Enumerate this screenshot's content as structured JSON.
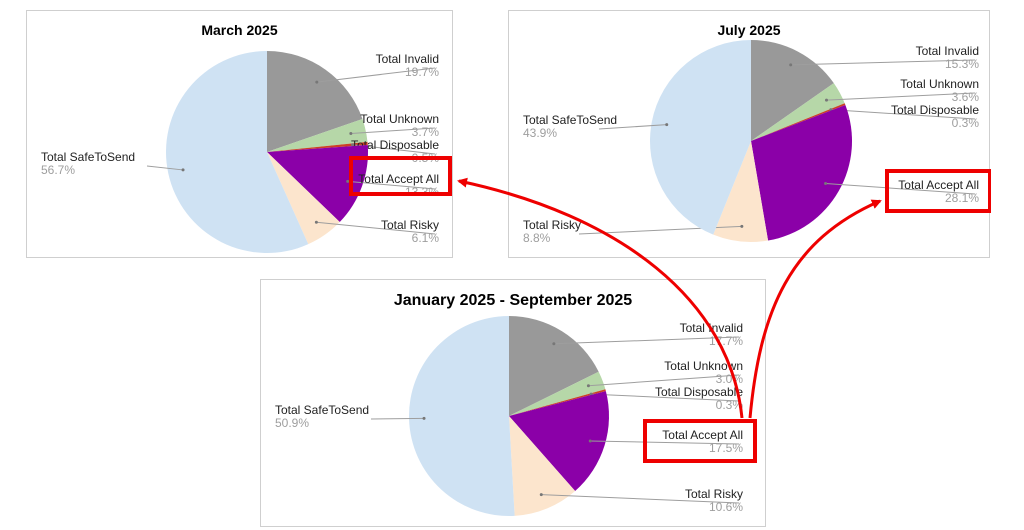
{
  "chart_data": [
    {
      "type": "pie",
      "title": "March 2025",
      "slices": [
        {
          "label": "Total Invalid",
          "value": 19.7,
          "pct": "19.7%",
          "color": "#999999"
        },
        {
          "label": "Total Unknown",
          "value": 3.7,
          "pct": "3.7%",
          "color": "#b6d7a8"
        },
        {
          "label": "Total Disposable",
          "value": 0.5,
          "pct": "0.5%",
          "color": "#cc4125"
        },
        {
          "label": "Total Accept All",
          "value": 13.3,
          "pct": "13.3%",
          "color": "#8b00a8"
        },
        {
          "label": "Total Risky",
          "value": 6.1,
          "pct": "6.1%",
          "color": "#fce5cd"
        },
        {
          "label": "Total SafeToSend",
          "value": 56.7,
          "pct": "56.7%",
          "color": "#cfe2f3"
        }
      ],
      "highlight": "Total Accept All"
    },
    {
      "type": "pie",
      "title": "July 2025",
      "slices": [
        {
          "label": "Total Invalid",
          "value": 15.3,
          "pct": "15.3%",
          "color": "#999999"
        },
        {
          "label": "Total Unknown",
          "value": 3.6,
          "pct": "3.6%",
          "color": "#b6d7a8"
        },
        {
          "label": "Total Disposable",
          "value": 0.3,
          "pct": "0.3%",
          "color": "#cc4125"
        },
        {
          "label": "Total Accept All",
          "value": 28.1,
          "pct": "28.1%",
          "color": "#8b00a8"
        },
        {
          "label": "Total Risky",
          "value": 8.8,
          "pct": "8.8%",
          "color": "#fce5cd"
        },
        {
          "label": "Total SafeToSend",
          "value": 43.9,
          "pct": "43.9%",
          "color": "#cfe2f3"
        }
      ],
      "highlight": "Total Accept All"
    },
    {
      "type": "pie",
      "title": "January 2025 - September 2025",
      "slices": [
        {
          "label": "Total Invalid",
          "value": 17.7,
          "pct": "17.7%",
          "color": "#999999"
        },
        {
          "label": "Total Unknown",
          "value": 3.0,
          "pct": "3.0%",
          "color": "#b6d7a8"
        },
        {
          "label": "Total Disposable",
          "value": 0.3,
          "pct": "0.3%",
          "color": "#cc4125"
        },
        {
          "label": "Total Accept All",
          "value": 17.5,
          "pct": "17.5%",
          "color": "#8b00a8"
        },
        {
          "label": "Total Risky",
          "value": 10.6,
          "pct": "10.6%",
          "color": "#fce5cd"
        },
        {
          "label": "Total SafeToSend",
          "value": 50.9,
          "pct": "50.9%",
          "color": "#cfe2f3"
        }
      ],
      "highlight": "Total Accept All"
    }
  ],
  "annotation_color": "#ee0000"
}
